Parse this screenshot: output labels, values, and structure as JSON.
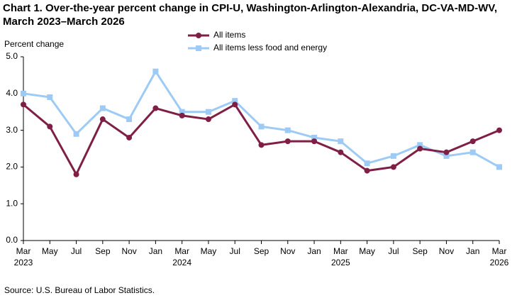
{
  "chart_data": {
    "type": "line",
    "title": "Chart 1. Over-the-year percent change in CPI-U, Washington-Arlington-Alexandria, DC-VA-MD-WV, March 2023–March 2026",
    "y_label": "Percent change",
    "source": "Source: U.S. Bureau of Labor Statistics.",
    "categories": [
      "Mar\n2023",
      "May",
      "Jul",
      "Sep",
      "Nov",
      "Jan",
      "Mar\n2024",
      "May",
      "Jul",
      "Sep",
      "Nov",
      "Jan",
      "Mar\n2025",
      "May",
      "Jul",
      "Sep",
      "Nov",
      "Jan",
      "Mar\n2026"
    ],
    "series": [
      {
        "name": "All items",
        "color": "#7f1f45",
        "marker": "circle",
        "values": [
          3.7,
          3.1,
          1.8,
          3.3,
          2.8,
          3.6,
          3.4,
          3.3,
          3.7,
          2.6,
          2.7,
          2.7,
          2.4,
          1.9,
          2.0,
          2.5,
          2.4,
          2.7,
          3.0
        ]
      },
      {
        "name": "All items less food and energy",
        "color": "#9dcbf5",
        "marker": "square",
        "values": [
          4.0,
          3.9,
          2.9,
          3.6,
          3.3,
          4.6,
          3.5,
          3.5,
          3.8,
          3.1,
          3.0,
          2.8,
          2.7,
          2.1,
          2.3,
          2.6,
          2.3,
          2.4,
          2.0
        ]
      }
    ],
    "ylim": [
      0,
      5
    ],
    "yticks": [
      {
        "value": 0,
        "label": "0.0"
      },
      {
        "value": 1,
        "label": "1.0"
      },
      {
        "value": 2,
        "label": "2.0"
      },
      {
        "value": 3,
        "label": "3.0"
      },
      {
        "value": 4,
        "label": "4.0"
      },
      {
        "value": 5,
        "label": "5.0"
      }
    ],
    "grid": false
  }
}
